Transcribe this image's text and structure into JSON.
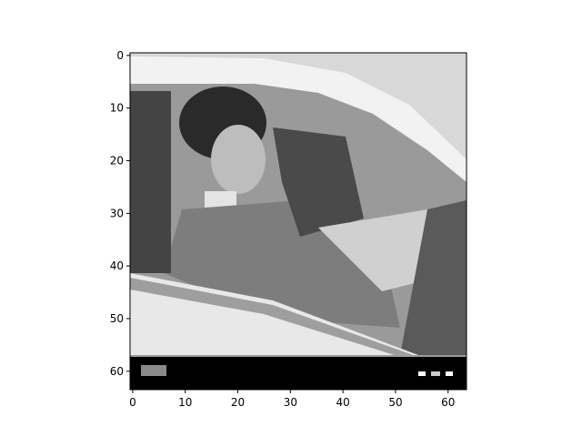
{
  "figure": {
    "colormap": "gray",
    "background": "#ffffff",
    "image_grid": [
      64,
      64
    ],
    "x_ticks": [
      "0",
      "10",
      "20",
      "30",
      "40",
      "50",
      "60"
    ],
    "y_ticks": [
      "0",
      "10",
      "20",
      "30",
      "40",
      "50",
      "60"
    ],
    "content_description": "grayscale pixelated photo of a person seated inside a car, viewed through the side window, with a black band along the bottom"
  }
}
